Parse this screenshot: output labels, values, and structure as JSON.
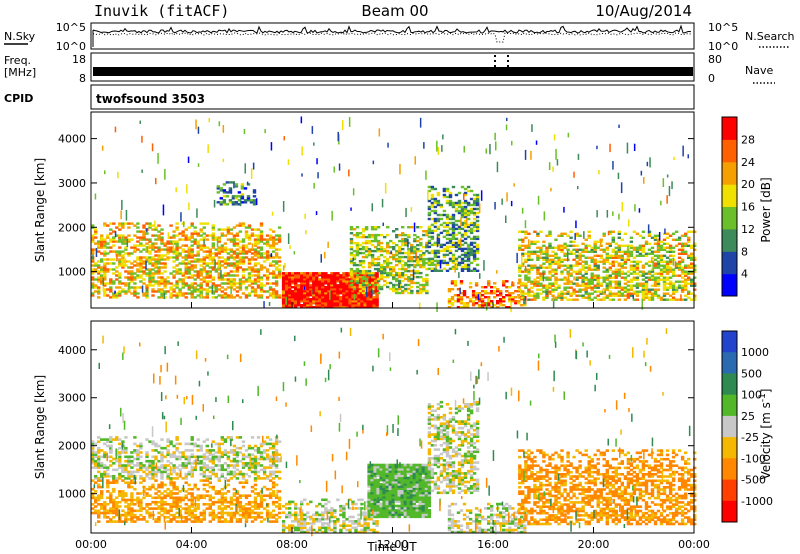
{
  "header": {
    "station": "Inuvik (fitACF)",
    "beam": "Beam 00",
    "date": "10/Aug/2014"
  },
  "nsky_panel": {
    "left_label": "N.Sky",
    "left_ticks": [
      "10^5",
      "10^0"
    ],
    "right_label": "N.Search",
    "right_ticks": [
      "10^5",
      "10^0"
    ]
  },
  "freq_panel": {
    "left_label_1": "Freq.",
    "left_label_2": "[MHz]",
    "left_ticks": [
      "18",
      "8"
    ],
    "right_label": "Nave",
    "right_ticks": [
      "80",
      "0"
    ]
  },
  "cpid_panel": {
    "label": "CPID",
    "value": "twofsound 3503"
  },
  "colors": {
    "power_scale": [
      "#0000ff",
      "#1f44a8",
      "#3d8a5a",
      "#6bbf2a",
      "#f0e000",
      "#f5a000",
      "#ff6000",
      "#ff0000"
    ],
    "velocity_scale": [
      "#2244cc",
      "#2a6ab0",
      "#2e8a50",
      "#52b82a",
      "#c8c8c8",
      "#f5b800",
      "#ff8800",
      "#ff4000",
      "#ff0000"
    ]
  },
  "chart_data": [
    {
      "type": "heatmap",
      "title": "Power",
      "ylabel": "Slant Range [km]",
      "xlabel": "",
      "ylim": [
        180,
        4600
      ],
      "xlim": [
        0,
        24
      ],
      "y_ticks": [
        "1000",
        "2000",
        "3000",
        "4000"
      ],
      "colorbar": {
        "label": "Power [dB]",
        "ticks": [
          "4",
          "8",
          "12",
          "16",
          "20",
          "24",
          "28"
        ],
        "range": [
          0,
          32
        ]
      },
      "regions": [
        {
          "t0": 0.0,
          "t1": 7.5,
          "r0": 400,
          "r1": 2100,
          "typical": 20
        },
        {
          "t0": 5.0,
          "t1": 6.5,
          "r0": 2500,
          "r1": 3000,
          "typical": 10
        },
        {
          "t0": 7.6,
          "t1": 11.4,
          "r0": 180,
          "r1": 950,
          "typical": 30
        },
        {
          "t0": 10.3,
          "t1": 13.4,
          "r0": 500,
          "r1": 2000,
          "typical": 16
        },
        {
          "t0": 13.4,
          "t1": 15.4,
          "r0": 1000,
          "r1": 2900,
          "typical": 12
        },
        {
          "t0": 14.2,
          "t1": 17.2,
          "r0": 180,
          "r1": 800,
          "typical": 24
        },
        {
          "t0": 17.0,
          "t1": 24.0,
          "r0": 350,
          "r1": 1900,
          "typical": 18
        }
      ]
    },
    {
      "type": "heatmap",
      "title": "Velocity",
      "ylabel": "Slant Range [km]",
      "xlabel": "Time UT",
      "ylim": [
        180,
        4600
      ],
      "xlim": [
        0,
        24
      ],
      "y_ticks": [
        "1000",
        "2000",
        "3000",
        "4000"
      ],
      "x_ticks": [
        "00:00",
        "04:00",
        "08:00",
        "12:00",
        "16:00",
        "20:00",
        "00:00"
      ],
      "colorbar": {
        "label": "Velocity [m s^-1]",
        "ticks": [
          "1000",
          "500",
          "100",
          "25",
          "-25",
          "-100",
          "-500",
          "-1000"
        ]
      },
      "regions": [
        {
          "t0": 0.0,
          "t1": 7.5,
          "r0": 400,
          "r1": 1300,
          "typical": -100
        },
        {
          "t0": 0.0,
          "t1": 7.5,
          "r0": 1300,
          "r1": 2200,
          "typical": 0
        },
        {
          "t0": 7.6,
          "t1": 11.4,
          "r0": 180,
          "r1": 900,
          "typical": 0
        },
        {
          "t0": 11.0,
          "t1": 13.5,
          "r0": 500,
          "r1": 1600,
          "typical": 60
        },
        {
          "t0": 13.4,
          "t1": 15.4,
          "r0": 1000,
          "r1": 2900,
          "typical": 0
        },
        {
          "t0": 14.2,
          "t1": 17.2,
          "r0": 180,
          "r1": 800,
          "typical": 0
        },
        {
          "t0": 17.0,
          "t1": 24.0,
          "r0": 350,
          "r1": 1900,
          "typical": -120
        }
      ]
    }
  ]
}
